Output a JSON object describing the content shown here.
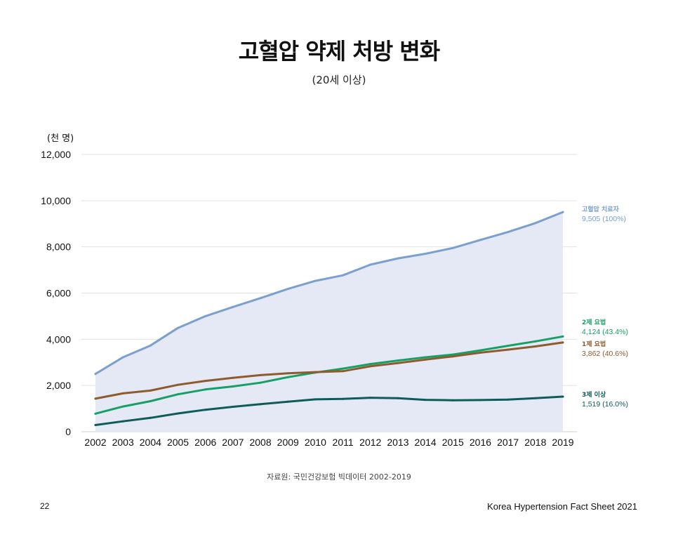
{
  "page": {
    "title": "고혈압 약제 처방 변화",
    "subtitle": "(20세 이상)",
    "source": "자료원: 국민건강보험 빅데이터 2002-2019",
    "page_number": "22",
    "footer": "Korea Hypertension Fact Sheet 2021"
  },
  "colors": {
    "total": "#7ba0cf",
    "area": "#e5e9f6",
    "two_drug": "#17a066",
    "one_drug": "#8d5b2e",
    "three_drug": "#0f5c57",
    "grid": "#e3e3e3"
  },
  "chart_data": {
    "type": "line",
    "unit_label": "(천 명)",
    "categories": [
      "2002",
      "2003",
      "2004",
      "2005",
      "2006",
      "2007",
      "2008",
      "2009",
      "2010",
      "2011",
      "2012",
      "2013",
      "2014",
      "2015",
      "2016",
      "2017",
      "2018",
      "2019"
    ],
    "ylim": [
      0,
      12000
    ],
    "yticks": [
      0,
      2000,
      4000,
      6000,
      8000,
      10000,
      12000
    ],
    "ytick_labels": [
      "0",
      "2,000",
      "4,000",
      "6,000",
      "8,000",
      "10,000",
      "12,000"
    ],
    "grid": true,
    "series": [
      {
        "key": "total",
        "name": "고혈압 치료자",
        "end_label": "9,505 (100%)",
        "color": "#7ba0cf",
        "area": true,
        "values": [
          2500,
          3220,
          3730,
          4490,
          5000,
          5400,
          5780,
          6180,
          6530,
          6770,
          7230,
          7500,
          7700,
          7950,
          8300,
          8640,
          9030,
          9505
        ]
      },
      {
        "key": "two_drug",
        "name": "2제 요법",
        "end_label": "4,124 (43.4%)",
        "color": "#17a066",
        "area": false,
        "values": [
          780,
          1090,
          1320,
          1620,
          1830,
          1960,
          2120,
          2360,
          2560,
          2730,
          2930,
          3080,
          3220,
          3340,
          3520,
          3720,
          3910,
          4124
        ]
      },
      {
        "key": "one_drug",
        "name": "1제 요법",
        "end_label": "3,862 (40.6%)",
        "color": "#8d5b2e",
        "area": false,
        "values": [
          1430,
          1660,
          1780,
          2030,
          2200,
          2330,
          2450,
          2530,
          2580,
          2620,
          2830,
          2970,
          3120,
          3260,
          3420,
          3550,
          3690,
          3862
        ]
      },
      {
        "key": "three_drug",
        "name": "3제 이상",
        "end_label": "1,519 (16.0%)",
        "color": "#0f5c57",
        "area": false,
        "values": [
          290,
          450,
          600,
          790,
          950,
          1080,
          1190,
          1300,
          1400,
          1420,
          1470,
          1450,
          1380,
          1360,
          1370,
          1390,
          1450,
          1519
        ]
      }
    ]
  }
}
